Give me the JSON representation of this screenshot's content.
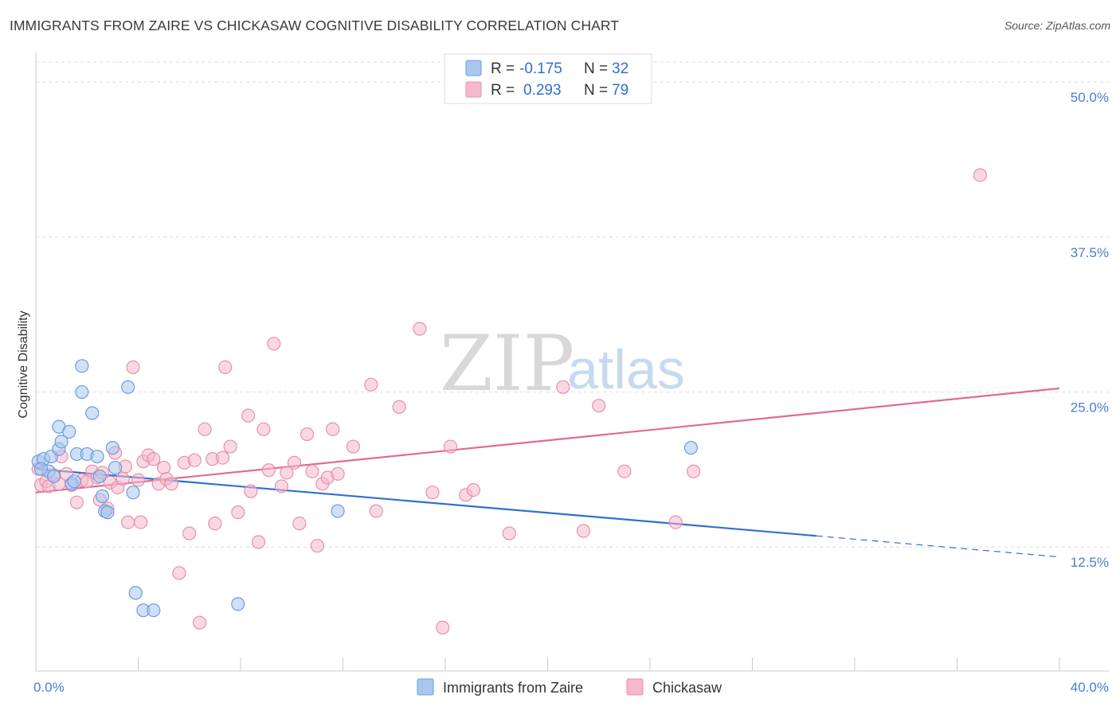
{
  "header": {
    "title": "IMMIGRANTS FROM ZAIRE VS CHICKASAW COGNITIVE DISABILITY CORRELATION CHART",
    "source": "Source: ZipAtlas.com"
  },
  "watermark": {
    "zip": "ZIP",
    "atlas": "atlas"
  },
  "legend": {
    "rows": [
      {
        "r_label": "R =",
        "r_value": "-0.175",
        "n_label": "N =",
        "n_value": "32",
        "color": "#a8c7f0"
      },
      {
        "r_label": "R =",
        "r_value": "0.293",
        "n_label": "N =",
        "n_value": "79",
        "color": "#f6b8cb"
      }
    ]
  },
  "chart_data": {
    "type": "scatter",
    "title": "IMMIGRANTS FROM ZAIRE VS CHICKASAW COGNITIVE DISABILITY CORRELATION CHART",
    "xlabel": "",
    "ylabel": "Cognitive Disability",
    "xlim": [
      0,
      40
    ],
    "ylim": [
      2.5,
      52
    ],
    "x_tick_labels": [
      "0.0%",
      "40.0%"
    ],
    "y_ticks": [
      12.5,
      25.0,
      37.5,
      50.0
    ],
    "y_tick_labels": [
      "12.5%",
      "25.0%",
      "37.5%",
      "50.0%"
    ],
    "grid": true,
    "legend_position": "top-center",
    "series": [
      {
        "name": "Immigrants from Zaire",
        "color": "#a8c7f0",
        "stroke": "#6a9ee0",
        "trend": {
          "x0": 0,
          "y0": 18.8,
          "x1": 30.5,
          "y1": 13.4,
          "dash_to_x": 40,
          "dash_to_y": 11.7,
          "color": "#2f6fd0"
        },
        "points": [
          [
            0.1,
            19.4
          ],
          [
            0.3,
            19.6
          ],
          [
            0.5,
            18.6
          ],
          [
            0.2,
            18.8
          ],
          [
            0.6,
            19.8
          ],
          [
            0.7,
            18.2
          ],
          [
            0.9,
            20.4
          ],
          [
            1.0,
            21.0
          ],
          [
            0.9,
            22.2
          ],
          [
            1.3,
            21.8
          ],
          [
            1.4,
            17.6
          ],
          [
            1.5,
            17.8
          ],
          [
            1.6,
            20.0
          ],
          [
            1.8,
            27.1
          ],
          [
            1.8,
            25.0
          ],
          [
            2.0,
            20.0
          ],
          [
            2.2,
            23.3
          ],
          [
            2.4,
            19.8
          ],
          [
            2.5,
            18.2
          ],
          [
            2.6,
            16.6
          ],
          [
            2.7,
            15.4
          ],
          [
            2.8,
            15.3
          ],
          [
            3.0,
            20.5
          ],
          [
            3.1,
            18.9
          ],
          [
            3.6,
            25.4
          ],
          [
            3.8,
            16.9
          ],
          [
            3.9,
            8.8
          ],
          [
            4.2,
            7.4
          ],
          [
            4.6,
            7.4
          ],
          [
            7.9,
            7.9
          ],
          [
            11.8,
            15.4
          ],
          [
            25.6,
            20.5
          ]
        ]
      },
      {
        "name": "Chickasaw",
        "color": "#f6b8cb",
        "stroke": "#e890ab",
        "trend": {
          "x0": 0,
          "y0": 16.9,
          "x1": 40,
          "y1": 25.3,
          "color": "#e06a94"
        },
        "points": [
          [
            0.1,
            18.8
          ],
          [
            0.2,
            17.5
          ],
          [
            0.4,
            17.8
          ],
          [
            0.5,
            17.4
          ],
          [
            0.7,
            18.3
          ],
          [
            0.9,
            17.6
          ],
          [
            1.0,
            19.8
          ],
          [
            1.2,
            18.4
          ],
          [
            1.4,
            17.5
          ],
          [
            1.6,
            16.1
          ],
          [
            1.8,
            17.9
          ],
          [
            2.0,
            17.8
          ],
          [
            2.2,
            18.6
          ],
          [
            2.4,
            18.1
          ],
          [
            2.5,
            16.3
          ],
          [
            2.6,
            18.5
          ],
          [
            2.8,
            15.6
          ],
          [
            2.9,
            17.7
          ],
          [
            3.1,
            20.1
          ],
          [
            3.2,
            17.3
          ],
          [
            3.4,
            18.0
          ],
          [
            3.5,
            19.0
          ],
          [
            3.6,
            14.5
          ],
          [
            3.8,
            27.0
          ],
          [
            4.0,
            17.9
          ],
          [
            4.1,
            14.5
          ],
          [
            4.2,
            19.4
          ],
          [
            4.4,
            19.9
          ],
          [
            4.6,
            19.6
          ],
          [
            4.8,
            17.6
          ],
          [
            5.0,
            18.9
          ],
          [
            5.1,
            18.0
          ],
          [
            5.3,
            17.6
          ],
          [
            5.6,
            10.4
          ],
          [
            5.8,
            19.3
          ],
          [
            6.0,
            13.6
          ],
          [
            6.2,
            19.5
          ],
          [
            6.4,
            6.4
          ],
          [
            6.6,
            22.0
          ],
          [
            6.9,
            19.6
          ],
          [
            7.0,
            14.4
          ],
          [
            7.3,
            19.7
          ],
          [
            7.4,
            27.0
          ],
          [
            7.6,
            20.6
          ],
          [
            7.9,
            15.3
          ],
          [
            8.3,
            23.1
          ],
          [
            8.4,
            17.0
          ],
          [
            8.7,
            12.9
          ],
          [
            8.9,
            22.0
          ],
          [
            9.1,
            18.7
          ],
          [
            9.3,
            28.9
          ],
          [
            9.6,
            17.4
          ],
          [
            9.8,
            18.5
          ],
          [
            10.1,
            19.3
          ],
          [
            10.3,
            14.4
          ],
          [
            10.6,
            21.6
          ],
          [
            10.8,
            18.6
          ],
          [
            11.0,
            12.6
          ],
          [
            11.2,
            17.6
          ],
          [
            11.4,
            18.1
          ],
          [
            11.6,
            22.0
          ],
          [
            11.8,
            18.4
          ],
          [
            12.4,
            20.6
          ],
          [
            13.1,
            25.6
          ],
          [
            13.3,
            15.4
          ],
          [
            14.2,
            23.8
          ],
          [
            15.0,
            30.1
          ],
          [
            15.5,
            16.9
          ],
          [
            15.9,
            6.0
          ],
          [
            16.2,
            20.6
          ],
          [
            16.8,
            16.7
          ],
          [
            17.1,
            17.1
          ],
          [
            18.5,
            13.6
          ],
          [
            20.6,
            25.4
          ],
          [
            21.4,
            13.8
          ],
          [
            22.0,
            23.9
          ],
          [
            23.0,
            18.6
          ],
          [
            25.0,
            14.5
          ],
          [
            25.7,
            18.6
          ],
          [
            36.9,
            42.5
          ]
        ]
      }
    ]
  },
  "bottom_legend": {
    "items": [
      {
        "label": "Immigrants from Zaire",
        "color": "#a8c7f0"
      },
      {
        "label": "Chickasaw",
        "color": "#f6b8cb"
      }
    ]
  }
}
